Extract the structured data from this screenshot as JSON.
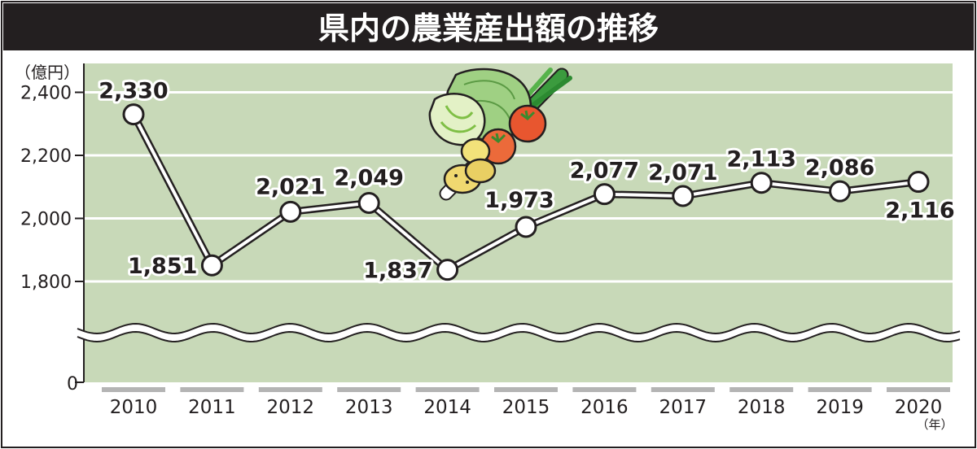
{
  "chart_data": {
    "type": "line",
    "title": "県内の農業産出額の推移",
    "y_unit_label": "（億円）",
    "x_unit_label": "（年）",
    "categories": [
      "2010",
      "2011",
      "2012",
      "2013",
      "2014",
      "2015",
      "2016",
      "2017",
      "2018",
      "2019",
      "2020"
    ],
    "values": [
      2330,
      1851,
      2021,
      2049,
      1837,
      1973,
      2077,
      2071,
      2113,
      2086,
      2116
    ],
    "value_labels": [
      "2,330",
      "1,851",
      "2,021",
      "2,049",
      "1,837",
      "1,973",
      "2,077",
      "2,071",
      "2,113",
      "2,086",
      "2,116"
    ],
    "yticks": [
      1800,
      2000,
      2200,
      2400
    ],
    "ytick_labels": [
      "1,800",
      "2,000",
      "2,200",
      "2,400"
    ],
    "zero_tick_label": "0",
    "ylim": [
      1700,
      2450
    ],
    "axis_break": true,
    "grid": true,
    "colors": {
      "title_bar": "#231f20",
      "title_text": "#ffffff",
      "plot_bg": "#c8d9b8",
      "line": "#231f20",
      "marker_fill": "#ffffff",
      "x_tick_bar": "#b4b4b4"
    },
    "illustration": "vegetables-illustration"
  }
}
